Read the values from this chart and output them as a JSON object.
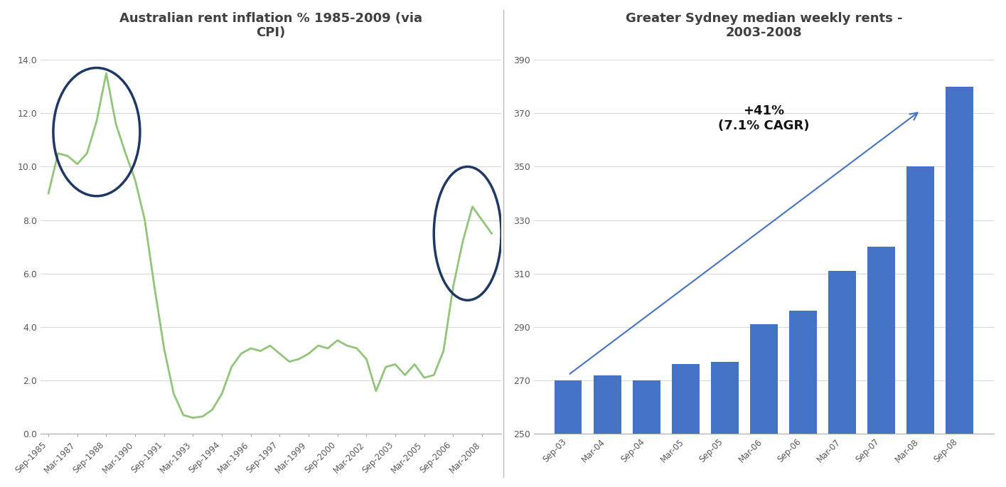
{
  "chart1_title": "Australian rent inflation % 1985-2009 (via\nCPI)",
  "chart1_xtick_labels": [
    "Sep-1985",
    "Mar-1987",
    "Sep-1988",
    "Mar-1990",
    "Sep-1991",
    "Mar-1993",
    "Sep-1994",
    "Mar-1996",
    "Sep-1997",
    "Mar-1999",
    "Sep-2000",
    "Mar-2002",
    "Sep-2003",
    "Mar-2005",
    "Sep-2006",
    "Mar-2008"
  ],
  "chart1_xtick_positions": [
    0,
    3,
    6,
    9,
    12,
    15,
    18,
    21,
    24,
    27,
    30,
    33,
    36,
    39,
    42,
    45
  ],
  "chart1_values_x": [
    0,
    1,
    2,
    3,
    4,
    5,
    6,
    7,
    8,
    9,
    10,
    11,
    12,
    13,
    14,
    15,
    16,
    17,
    18,
    19,
    20,
    21,
    22,
    23,
    24,
    25,
    26,
    27,
    28,
    29,
    30,
    31,
    32,
    33,
    34,
    35,
    36,
    37,
    38,
    39,
    40,
    41,
    42,
    43,
    44,
    45,
    46
  ],
  "chart1_values_y": [
    9.0,
    10.5,
    10.4,
    10.1,
    10.5,
    11.7,
    13.5,
    11.6,
    10.5,
    9.5,
    8.0,
    5.5,
    3.2,
    1.5,
    0.7,
    0.6,
    0.65,
    0.9,
    1.5,
    2.5,
    3.0,
    3.2,
    3.1,
    3.3,
    3.0,
    2.7,
    2.8,
    3.0,
    3.3,
    3.2,
    3.5,
    3.3,
    3.2,
    2.8,
    1.6,
    2.5,
    2.6,
    2.2,
    2.6,
    2.1,
    2.2,
    3.1,
    5.5,
    7.2,
    8.5,
    8.0,
    7.5
  ],
  "chart1_ylim": [
    0.0,
    14.5
  ],
  "chart1_yticks": [
    0.0,
    2.0,
    4.0,
    6.0,
    8.0,
    10.0,
    12.0,
    14.0
  ],
  "chart1_ytick_labels": [
    "0.0",
    "2.0",
    "4.0",
    "6.0",
    "8.0",
    "10.0",
    "12.0",
    "14.0"
  ],
  "chart1_line_color": "#92c47a",
  "chart1_circle_color": "#1f3864",
  "chart2_title": "Greater Sydney median weekly rents -\n2003-2008",
  "chart2_bar_labels": [
    "Sep-03",
    "Mar-04",
    "Sep-04",
    "Mar-05",
    "Sep-05",
    "Mar-06",
    "Sep-06",
    "Mar-07",
    "Sep-07",
    "Mar-08",
    "Sep-08"
  ],
  "chart2_bar_values": [
    270,
    272,
    270,
    276,
    277,
    291,
    296,
    311,
    320,
    350,
    380
  ],
  "chart2_ylim": [
    250,
    395
  ],
  "chart2_yticks": [
    250,
    270,
    290,
    310,
    330,
    350,
    370,
    390
  ],
  "chart2_bar_color": "#4472c4",
  "chart2_annotation_text": "+41%\n(7.1% CAGR)",
  "background_color": "#ffffff",
  "title_color": "#404040",
  "grid_color": "#d9d9d9",
  "tick_color": "#595959"
}
